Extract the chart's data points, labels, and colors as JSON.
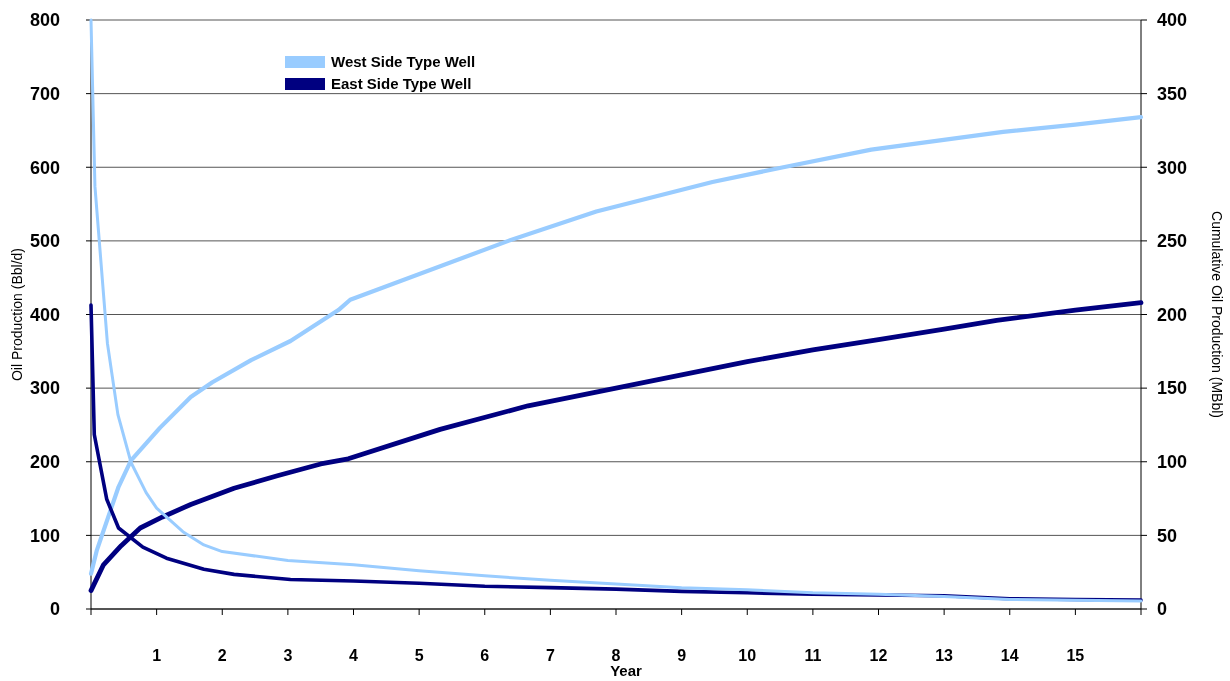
{
  "chart_data": {
    "type": "line",
    "xlabel": "Year",
    "ylabel": "Oil Production (Bbl/d)",
    "y2label": "Cumulative Oil Production (MBbl)",
    "xlim": [
      0,
      16
    ],
    "xticks": [
      {
        "value": 0,
        "label": null
      },
      1,
      2,
      3,
      4,
      5,
      6,
      7,
      8,
      9,
      10,
      11,
      12,
      13,
      14,
      15,
      {
        "value": 16,
        "label": null
      }
    ],
    "ylim": [
      0,
      800
    ],
    "yticks": [
      0,
      100,
      200,
      300,
      400,
      500,
      600,
      700,
      800
    ],
    "y2lim": [
      0,
      400
    ],
    "y2ticks": [
      0,
      50,
      100,
      150,
      200,
      250,
      300,
      350,
      400
    ],
    "grid": "y",
    "legend": "top left",
    "line_style": "solid",
    "marker": "none",
    "series": [
      {
        "name": "West Side Type Well",
        "color": "#99ccff",
        "x": [
          0,
          0.06,
          0.25,
          0.41,
          0.61,
          0.84,
          1.0,
          1.4,
          1.72,
          2.0,
          3.0,
          4.0,
          5,
          6,
          7,
          8,
          9,
          10,
          11,
          12,
          13,
          14,
          15,
          16
        ],
        "values": [
          800,
          574,
          361,
          264,
          199,
          158,
          137,
          105,
          87,
          78,
          66,
          60,
          52,
          45,
          39,
          34,
          29,
          26,
          22,
          20,
          17,
          13,
          12,
          11
        ]
      },
      {
        "name": "East Side Type Well",
        "color": "#000080",
        "x": [
          0,
          0.05,
          0.24,
          0.42,
          0.79,
          1.15,
          1.72,
          2.18,
          3.04,
          4,
          5,
          6,
          7,
          8,
          9,
          10,
          11,
          12,
          13,
          14,
          15,
          16
        ],
        "values": [
          413,
          237,
          149,
          110,
          84,
          69,
          54,
          47,
          40,
          38,
          35,
          31,
          29,
          27,
          24,
          22,
          20,
          19,
          18,
          14,
          13,
          12
        ]
      },
      {
        "color": "#99ccff",
        "axis": "y2",
        "x": [
          0,
          0.09,
          0.42,
          0.61,
          1.05,
          1.52,
          1.85,
          2.44,
          3.04,
          3.77,
          3.95,
          6.36,
          7.7,
          9.47,
          10.55,
          11.89,
          13.9,
          15,
          16
        ],
        "values": [
          24,
          40,
          83,
          101,
          123,
          144,
          154,
          169,
          182,
          203,
          210,
          250,
          270,
          290,
          300,
          312,
          324,
          329,
          334
        ]
      },
      {
        "color": "#000080",
        "axis": "y2",
        "x": [
          0,
          0.19,
          0.46,
          0.75,
          1.09,
          1.52,
          2.18,
          2.84,
          3.5,
          3.92,
          5.32,
          6.66,
          8,
          9,
          10,
          11,
          12,
          13,
          13.8,
          15,
          16
        ],
        "values": [
          12.5,
          30,
          43,
          55,
          62.5,
          71,
          82,
          90.5,
          98.5,
          102,
          122,
          138,
          150,
          159,
          168,
          176,
          183,
          190,
          196,
          203,
          208
        ]
      }
    ]
  }
}
